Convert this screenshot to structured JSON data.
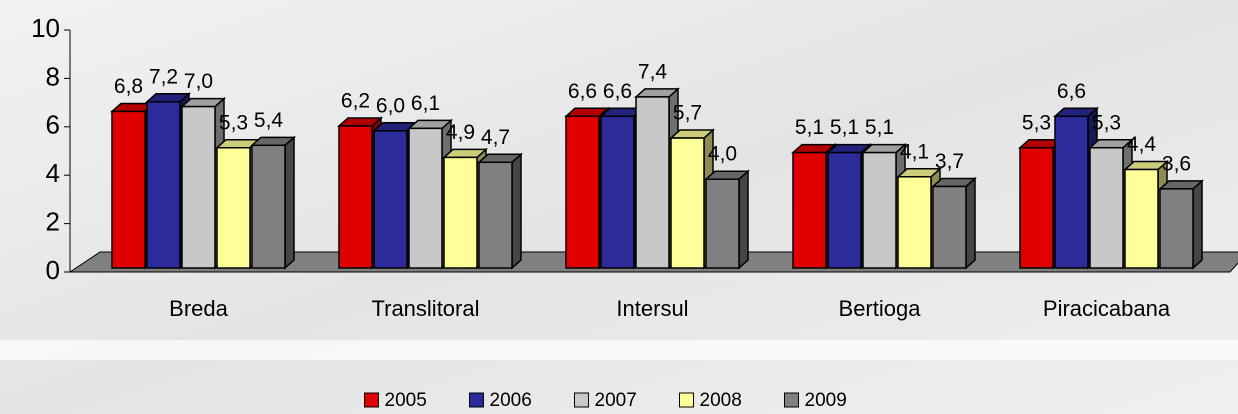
{
  "chart_data": {
    "type": "bar3d",
    "categories": [
      "Breda",
      "Translitoral",
      "Intersul",
      "Bertioga",
      "Piracicabana"
    ],
    "series": [
      {
        "name": "2005",
        "color": "#e00000",
        "values": [
          6.8,
          6.2,
          6.6,
          5.1,
          5.3
        ],
        "value_labels": [
          "6,8",
          "6,2",
          "6,6",
          "5,1",
          "5,3"
        ]
      },
      {
        "name": "2006",
        "color": "#2b2b99",
        "values": [
          7.2,
          6.0,
          6.6,
          5.1,
          6.6
        ],
        "value_labels": [
          "7,2",
          "6,0",
          "6,6",
          "5,1",
          "6,6"
        ]
      },
      {
        "name": "2007",
        "color": "#c8c8c8",
        "values": [
          7.0,
          6.1,
          7.4,
          5.1,
          5.3
        ],
        "value_labels": [
          "7,0",
          "6,1",
          "7,4",
          "5,1",
          "5,3"
        ]
      },
      {
        "name": "2008",
        "color": "#ffff99",
        "values": [
          5.3,
          4.9,
          5.7,
          4.1,
          4.4
        ],
        "value_labels": [
          "5,3",
          "4,9",
          "5,7",
          "4,1",
          "4,4"
        ]
      },
      {
        "name": "2009",
        "color": "#808080",
        "values": [
          5.4,
          4.7,
          4.0,
          3.7,
          3.6
        ],
        "value_labels": [
          "5,4",
          "4,7",
          "4,0",
          "3,7",
          "3,6"
        ]
      }
    ],
    "ylim": [
      0,
      10
    ],
    "yticks": [
      0,
      2,
      4,
      6,
      8,
      10
    ],
    "grid": false,
    "legend": "bottom"
  }
}
